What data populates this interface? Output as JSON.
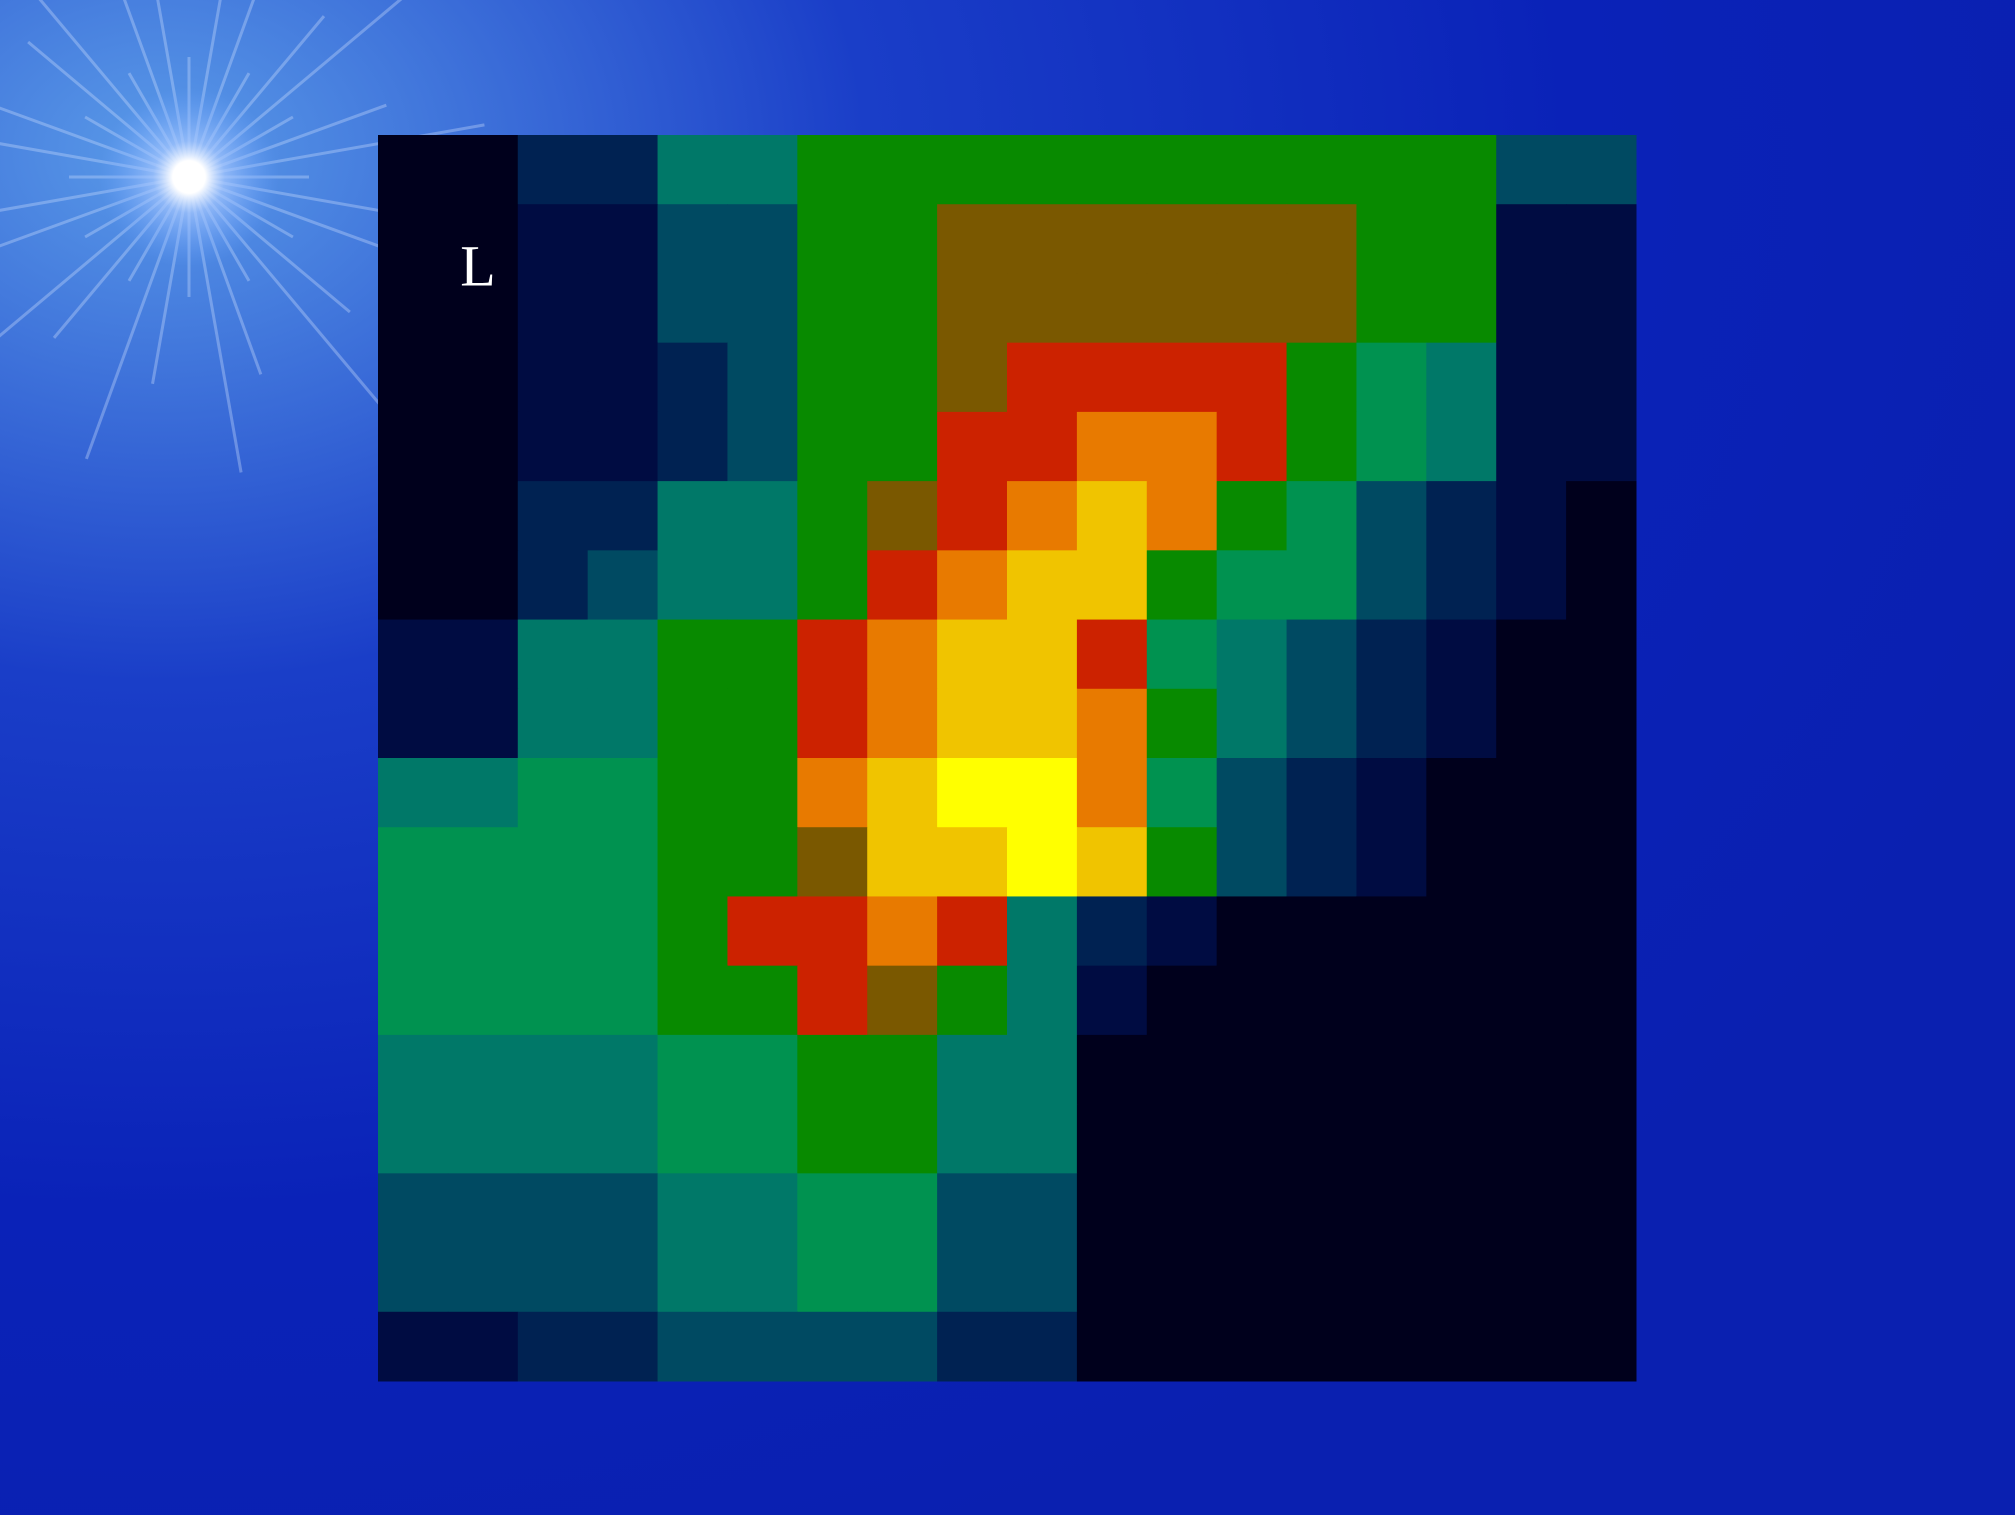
{
  "label": "L"
}
